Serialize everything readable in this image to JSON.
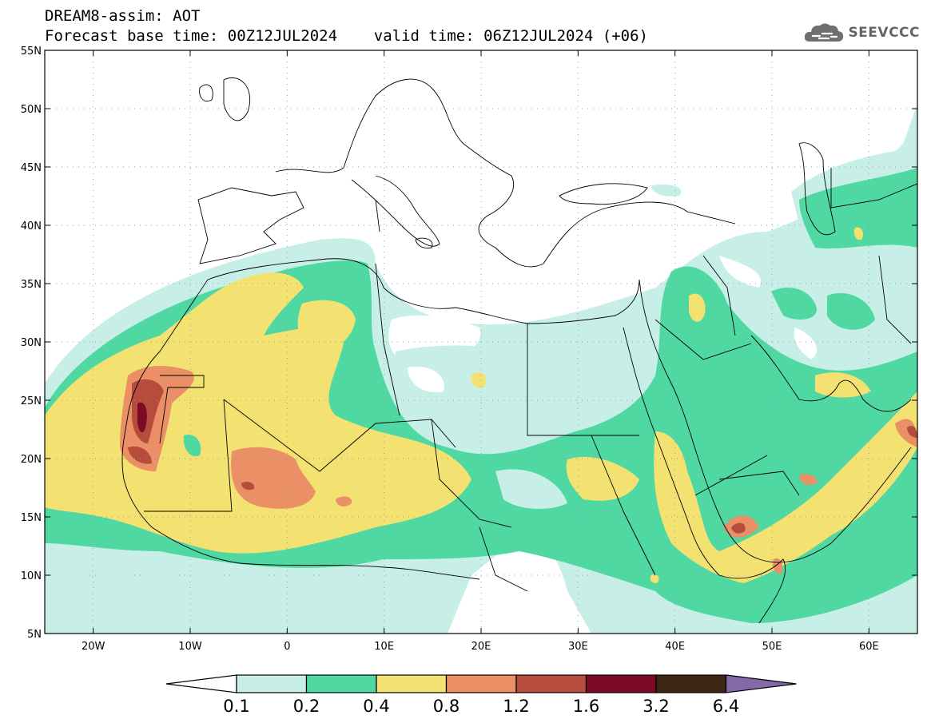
{
  "title": {
    "line1": "DREAM8-assim: AOT",
    "line2": "Forecast base time: 00Z12JUL2024    valid time: 06Z12JUL2024 (+06)"
  },
  "logo": {
    "text": "SEEVCCC",
    "icon": "cloud-logo-icon",
    "color": "#666666"
  },
  "map": {
    "lon_range": [
      -25,
      65
    ],
    "lat_range": [
      5,
      55
    ],
    "lat_ticks": [
      "55N",
      "50N",
      "45N",
      "40N",
      "35N",
      "30N",
      "25N",
      "20N",
      "15N",
      "10N",
      "5N"
    ],
    "lon_ticks": [
      "20W",
      "10W",
      "0",
      "10E",
      "20E",
      "30E",
      "40E",
      "50E",
      "60E"
    ],
    "lat_tick_values": [
      55,
      50,
      45,
      40,
      35,
      30,
      25,
      20,
      15,
      10,
      5
    ],
    "lon_tick_values": [
      -20,
      -10,
      0,
      10,
      20,
      30,
      40,
      50,
      60
    ],
    "grid": "dotted"
  },
  "colorbar": {
    "labels": [
      "0.1",
      "0.2",
      "0.4",
      "0.8",
      "1.2",
      "1.6",
      "3.2",
      "6.4"
    ],
    "colors": [
      "#c8efe7",
      "#50d8a2",
      "#f3e272",
      "#ea8f66",
      "#b54c3c",
      "#7d0a26",
      "#3e2615",
      "#8468a8"
    ],
    "under_color": "#ffffff"
  }
}
